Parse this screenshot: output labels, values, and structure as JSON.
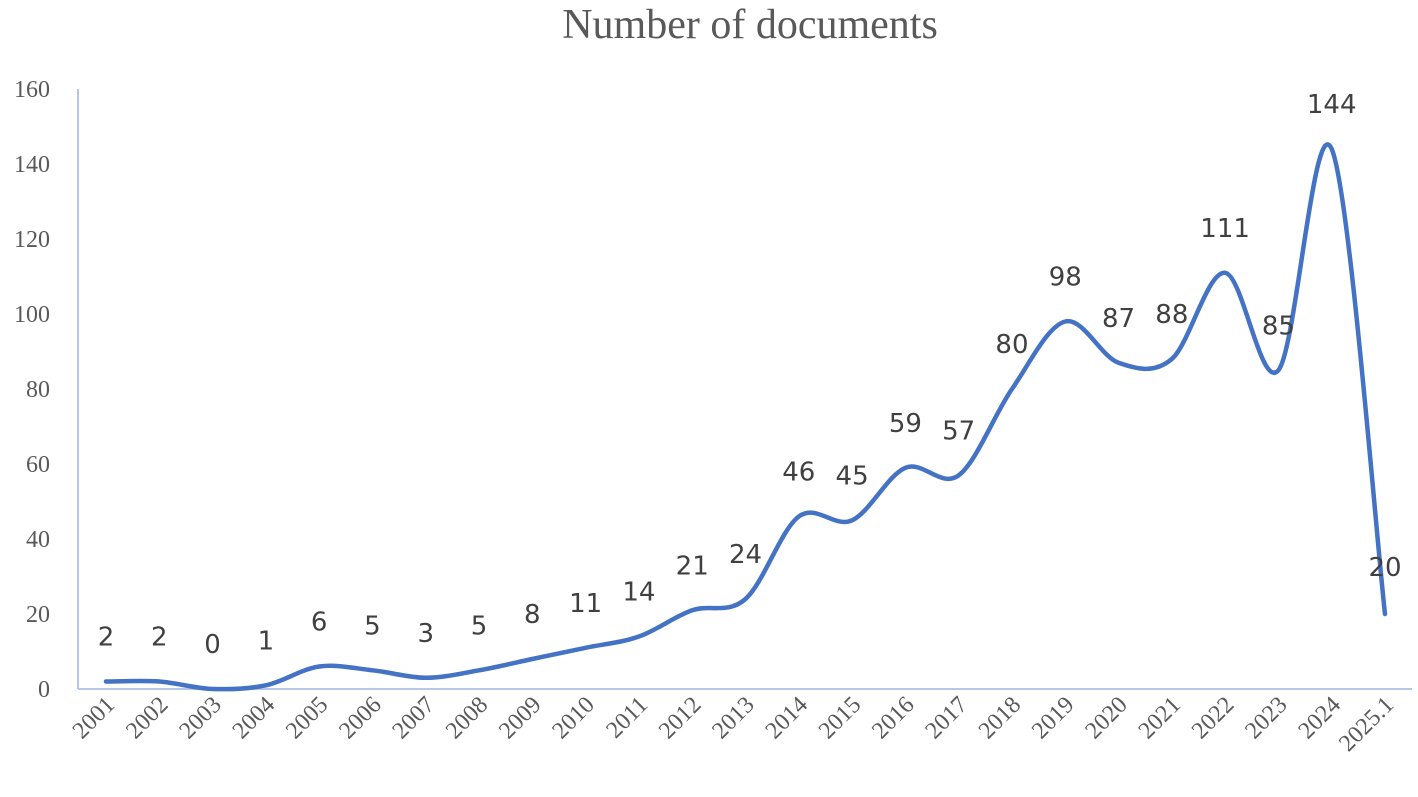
{
  "chart_data": {
    "type": "line",
    "title": "Number of documents",
    "categories": [
      "2001",
      "2002",
      "2003",
      "2004",
      "2005",
      "2006",
      "2007",
      "2008",
      "2009",
      "2010",
      "2011",
      "2012",
      "2013",
      "2014",
      "2015",
      "2016",
      "2017",
      "2018",
      "2019",
      "2020",
      "2021",
      "2022",
      "2023",
      "2024",
      "2025.1"
    ],
    "series": [
      {
        "values": [
          2,
          2,
          0,
          1,
          6,
          5,
          3,
          5,
          8,
          11,
          14,
          21,
          24,
          46,
          45,
          59,
          57,
          80,
          98,
          87,
          88,
          111,
          85,
          144,
          20
        ]
      }
    ],
    "y_ticks": [
      "0",
      "20",
      "40",
      "60",
      "80",
      "100",
      "120",
      "140",
      "160"
    ],
    "ylim": [
      0,
      160
    ],
    "smoothed": true,
    "data_labels": true,
    "grid": false,
    "legend": "none",
    "colors": {
      "line": "#4472c4",
      "axis": "#b4c7e7",
      "text": "#595959"
    }
  }
}
